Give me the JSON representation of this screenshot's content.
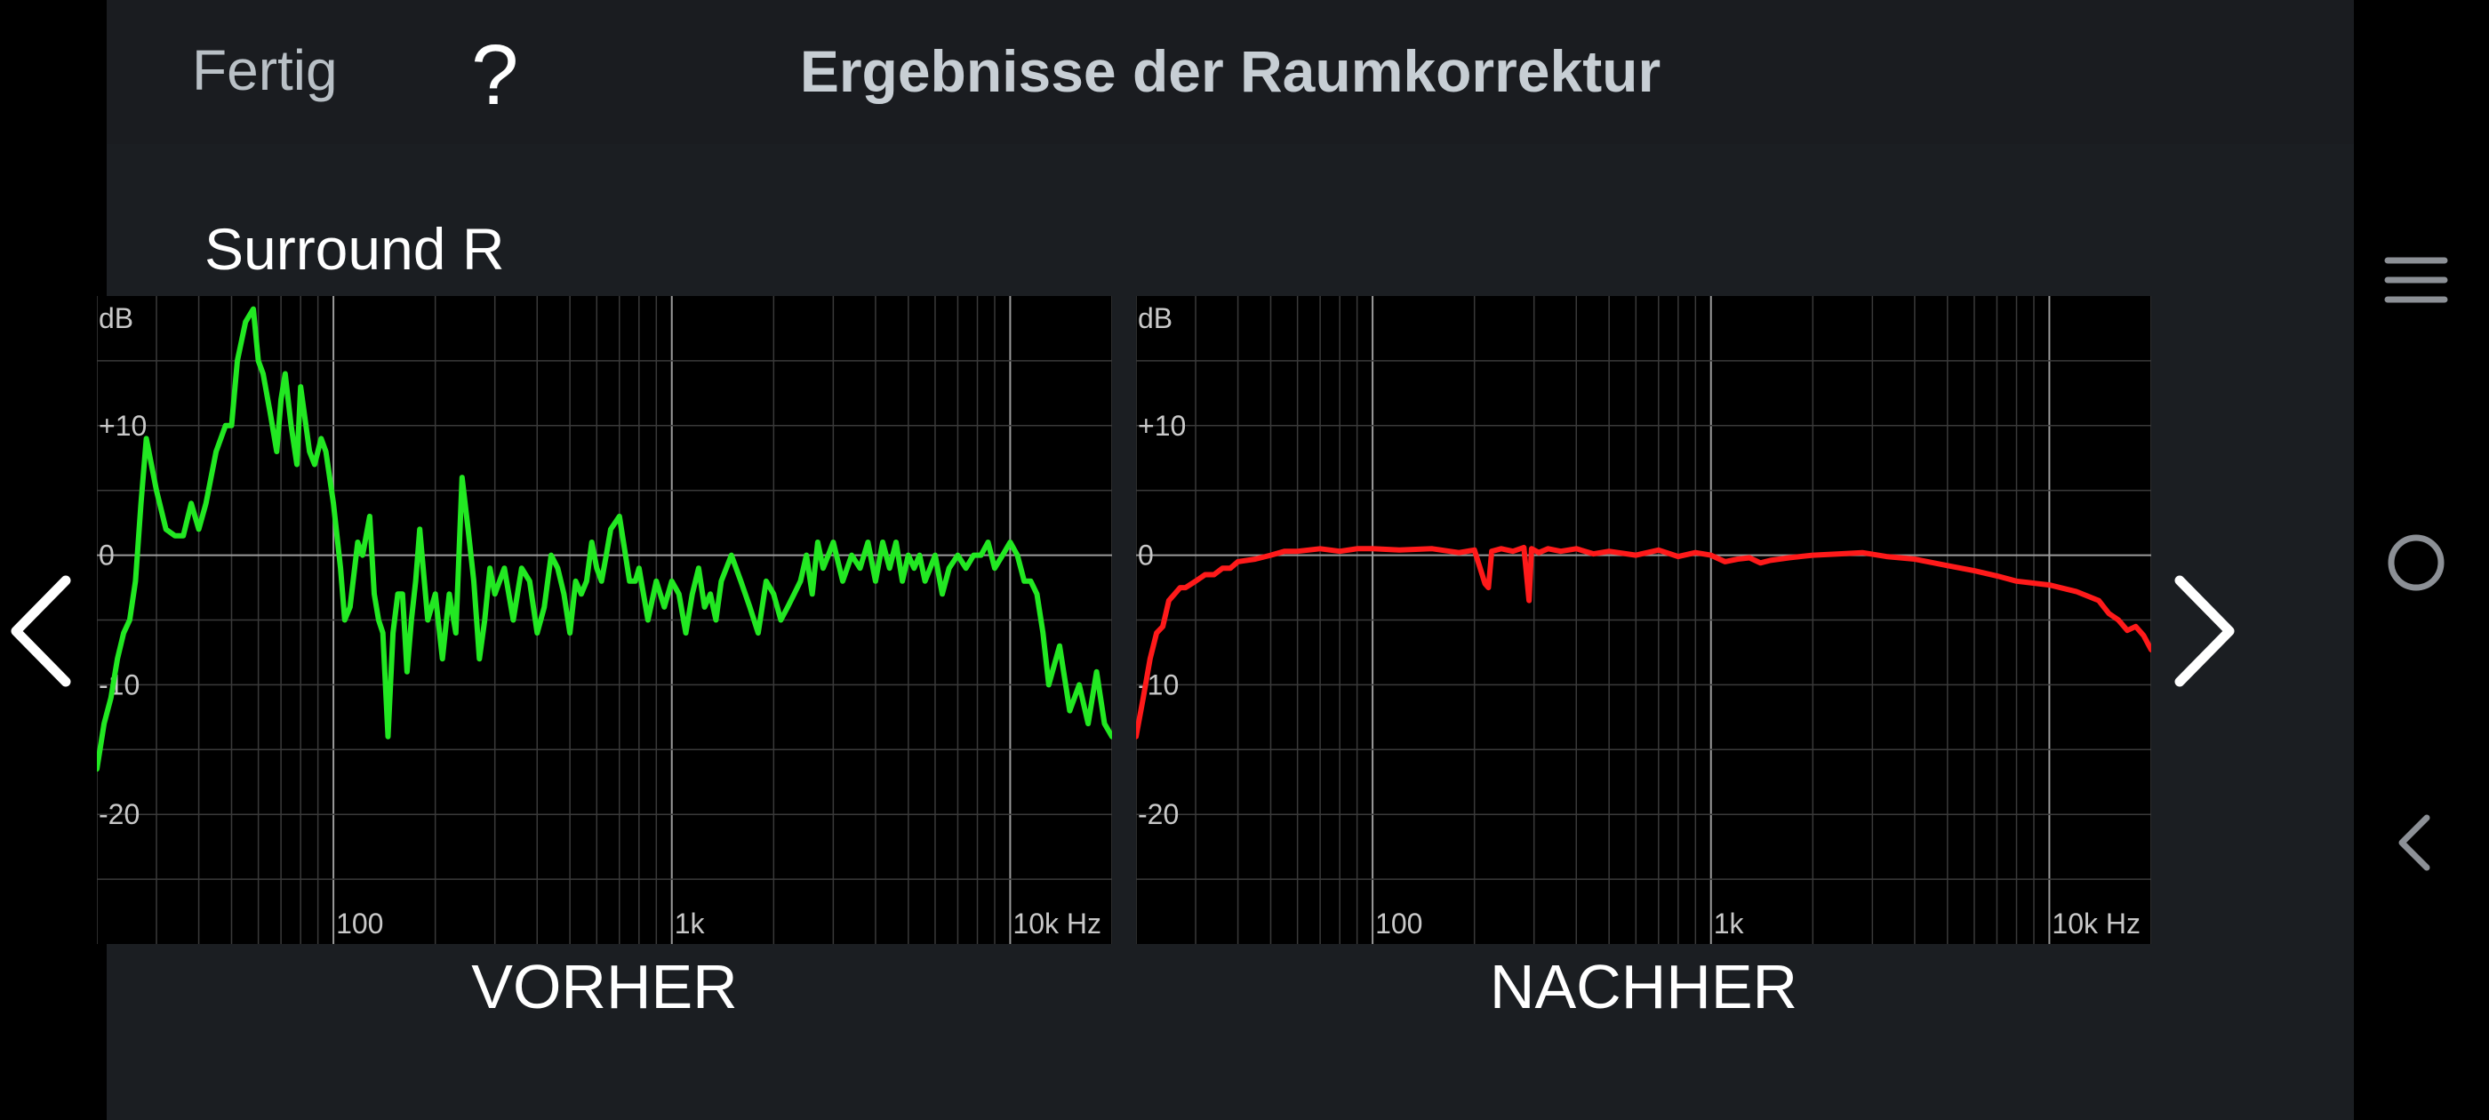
{
  "header": {
    "done_label": "Fertig",
    "help_label": "?",
    "title": "Ergebnisse der Raumkorrektur"
  },
  "speaker_name": "Surround R",
  "nav": {
    "prev_icon": "chevron-left-icon",
    "next_icon": "chevron-right-icon"
  },
  "system_nav": {
    "menu_icon": "menu-icon",
    "home_icon": "home-circle-icon",
    "back_icon": "back-chevron-icon"
  },
  "colors": {
    "before_curve": "#22e822",
    "after_curve": "#ff1a1a",
    "background": "#1b1e22"
  },
  "chart_data": [
    {
      "type": "line",
      "caption": "VORHER",
      "xlabel": "Hz",
      "ylabel": "dB",
      "x_scale": "log",
      "xlim": [
        20,
        20000
      ],
      "ylim": [
        -30,
        20
      ],
      "y_ticks": [
        {
          "v": 10,
          "label": "+10"
        },
        {
          "v": 0,
          "label": "0"
        },
        {
          "v": -10,
          "label": "-10"
        },
        {
          "v": -20,
          "label": "-20"
        }
      ],
      "x_ticks": [
        {
          "v": 100,
          "label": "100"
        },
        {
          "v": 1000,
          "label": "1k"
        },
        {
          "v": 10000,
          "label": "10k Hz"
        }
      ],
      "grid": true,
      "series": [
        {
          "color": "#22e822",
          "x": [
            20,
            21,
            22,
            23,
            24,
            25,
            26,
            27,
            28,
            30,
            32,
            34,
            36,
            38,
            40,
            42,
            45,
            48,
            50,
            52,
            55,
            58,
            60,
            62,
            65,
            68,
            70,
            72,
            75,
            78,
            80,
            85,
            88,
            92,
            95,
            100,
            105,
            108,
            112,
            118,
            122,
            128,
            132,
            136,
            140,
            145,
            150,
            155,
            160,
            165,
            170,
            175,
            180,
            190,
            200,
            210,
            220,
            230,
            240,
            250,
            260,
            270,
            280,
            290,
            300,
            320,
            340,
            360,
            380,
            400,
            420,
            440,
            460,
            480,
            500,
            520,
            540,
            560,
            580,
            600,
            620,
            640,
            660,
            700,
            720,
            750,
            780,
            800,
            850,
            900,
            950,
            1000,
            1050,
            1100,
            1150,
            1200,
            1250,
            1300,
            1350,
            1400,
            1500,
            1600,
            1700,
            1800,
            1900,
            2000,
            2100,
            2200,
            2300,
            2400,
            2500,
            2600,
            2700,
            2800,
            2900,
            3000,
            3200,
            3400,
            3600,
            3800,
            4000,
            4200,
            4400,
            4600,
            4800,
            5000,
            5200,
            5400,
            5600,
            5800,
            6000,
            6300,
            6600,
            7000,
            7400,
            7800,
            8200,
            8600,
            9000,
            9500,
            10000,
            10500,
            11000,
            11500,
            12000,
            12500,
            13000,
            14000,
            15000,
            16000,
            17000,
            18000,
            19000,
            20000
          ],
          "y": [
            -16.5,
            -13,
            -11,
            -8,
            -6,
            -5,
            -2,
            4,
            9,
            5,
            2,
            1.5,
            1.5,
            4,
            2,
            4,
            8,
            10,
            10,
            15,
            18,
            19,
            15,
            14,
            11,
            8,
            12,
            14,
            10,
            7,
            13,
            8,
            7,
            9,
            8,
            4,
            -1,
            -5,
            -4,
            1,
            0,
            3,
            -3,
            -5,
            -6,
            -14,
            -6,
            -3,
            -3,
            -9,
            -5,
            -2,
            2,
            -5,
            -3,
            -8,
            -3,
            -6,
            6,
            2,
            -2,
            -8,
            -5,
            -1,
            -3,
            -1,
            -5,
            -1,
            -2,
            -6,
            -4,
            0,
            -1,
            -3,
            -6,
            -2,
            -3,
            -2,
            1,
            -1,
            -2,
            0,
            2,
            3,
            1,
            -2,
            -2,
            -1,
            -5,
            -2,
            -4,
            -2,
            -3,
            -6,
            -3,
            -1,
            -4,
            -3,
            -5,
            -2,
            0,
            -2,
            -4,
            -6,
            -2,
            -3,
            -5,
            -4,
            -3,
            -2,
            0,
            -3,
            1,
            -1,
            0,
            1,
            -2,
            0,
            -1,
            1,
            -2,
            1,
            -1,
            1,
            -2,
            0,
            -1,
            0,
            -2,
            -1,
            0,
            -3,
            -1,
            0,
            -1,
            0,
            0,
            1,
            -1,
            0,
            1,
            0,
            -2,
            -2,
            -3,
            -6,
            -10,
            -7,
            -12,
            -10,
            -13,
            -9,
            -13,
            -14
          ]
        }
      ]
    },
    {
      "type": "line",
      "caption": "NACHHER",
      "xlabel": "Hz",
      "ylabel": "dB",
      "x_scale": "log",
      "xlim": [
        20,
        20000
      ],
      "ylim": [
        -30,
        20
      ],
      "y_ticks": [
        {
          "v": 10,
          "label": "+10"
        },
        {
          "v": 0,
          "label": "0"
        },
        {
          "v": -10,
          "label": "-10"
        },
        {
          "v": -20,
          "label": "-20"
        }
      ],
      "x_ticks": [
        {
          "v": 100,
          "label": "100"
        },
        {
          "v": 1000,
          "label": "1k"
        },
        {
          "v": 10000,
          "label": "10k Hz"
        }
      ],
      "grid": true,
      "series": [
        {
          "color": "#ff1a1a",
          "x": [
            20,
            21,
            22,
            23,
            24,
            25,
            26,
            27,
            28,
            30,
            32,
            34,
            36,
            38,
            40,
            45,
            50,
            55,
            60,
            70,
            80,
            90,
            100,
            120,
            150,
            180,
            200,
            215,
            220,
            225,
            240,
            260,
            280,
            290,
            295,
            300,
            310,
            330,
            360,
            400,
            450,
            500,
            600,
            700,
            800,
            900,
            1000,
            1100,
            1200,
            1300,
            1400,
            1500,
            1700,
            2000,
            2400,
            2800,
            3300,
            4000,
            5000,
            6000,
            7000,
            8000,
            10000,
            12000,
            14000,
            15000,
            16000,
            17000,
            18000,
            19000,
            20000
          ],
          "y": [
            -14,
            -11,
            -8,
            -6,
            -5.5,
            -3.5,
            -3,
            -2.5,
            -2.5,
            -2,
            -1.5,
            -1.5,
            -1,
            -1,
            -0.5,
            -0.3,
            0,
            0.3,
            0.3,
            0.5,
            0.3,
            0.5,
            0.5,
            0.4,
            0.5,
            0.2,
            0.4,
            -2.2,
            -2.5,
            0.3,
            0.5,
            0.3,
            0.6,
            -3.5,
            0.5,
            0.4,
            0.2,
            0.5,
            0.3,
            0.5,
            0.1,
            0.3,
            0,
            0.4,
            -0.1,
            0.2,
            0,
            -0.5,
            -0.3,
            -0.2,
            -0.6,
            -0.4,
            -0.2,
            0,
            0.1,
            0.2,
            -0.1,
            -0.3,
            -0.8,
            -1.2,
            -1.6,
            -2,
            -2.3,
            -2.8,
            -3.5,
            -4.5,
            -5,
            -5.8,
            -5.5,
            -6.2,
            -7.3
          ]
        }
      ]
    }
  ]
}
